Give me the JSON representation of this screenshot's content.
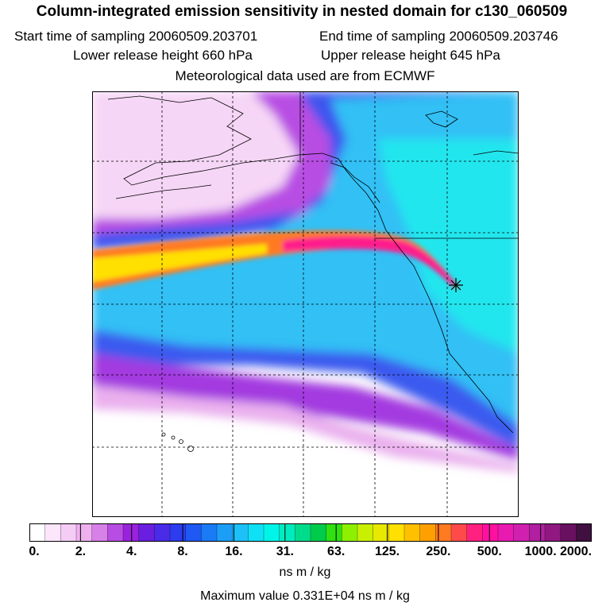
{
  "header": {
    "title": "Column-integrated emission sensitivity in nested domain for c130_060509",
    "start_sampling": "Start time of sampling 20060509.203701",
    "end_sampling": "End time of sampling 20060509.203746",
    "lower_release": "Lower release height  660 hPa",
    "upper_release": "Upper release height  645 hPa",
    "met_data": "Meteorological data used are from ECMWF"
  },
  "colorbar": {
    "tick_labels": [
      "0.",
      "2.",
      "4.",
      "8.",
      "16.",
      "31.",
      "63.",
      "125.",
      "250.",
      "500.",
      "1000.",
      "2000."
    ],
    "colors": [
      "#ffffff",
      "#fbe6fb",
      "#f5ccf5",
      "#eeb0ee",
      "#d780e8",
      "#b84de3",
      "#9a22de",
      "#6a1fe0",
      "#4a2be8",
      "#2c3cee",
      "#1f58f2",
      "#1a7bf5",
      "#1c9ef7",
      "#1ec0f8",
      "#10e0f5",
      "#00f5e8",
      "#00ecc0",
      "#00dc8c",
      "#00cc4c",
      "#30e010",
      "#8cf000",
      "#c8f000",
      "#e8e800",
      "#ffe000",
      "#ffc000",
      "#ffa000",
      "#ff7a20",
      "#ff4a4a",
      "#ff2080",
      "#ff10a0",
      "#e81ab0",
      "#d020b0",
      "#b020a0",
      "#901880",
      "#6a1060",
      "#401040"
    ],
    "units": "ns m / kg",
    "max_value": "Maximum value  0.331E+04 ns m / kg"
  },
  "map": {
    "description_colors": {
      "low": "#fbe6fb",
      "purple": "#9a22de",
      "blue": "#2c5cf0",
      "light_blue": "#33c8f5",
      "cyan": "#2af0ee",
      "plume_core": "#ff1a8c",
      "plume_outer": "#ffe000"
    }
  }
}
